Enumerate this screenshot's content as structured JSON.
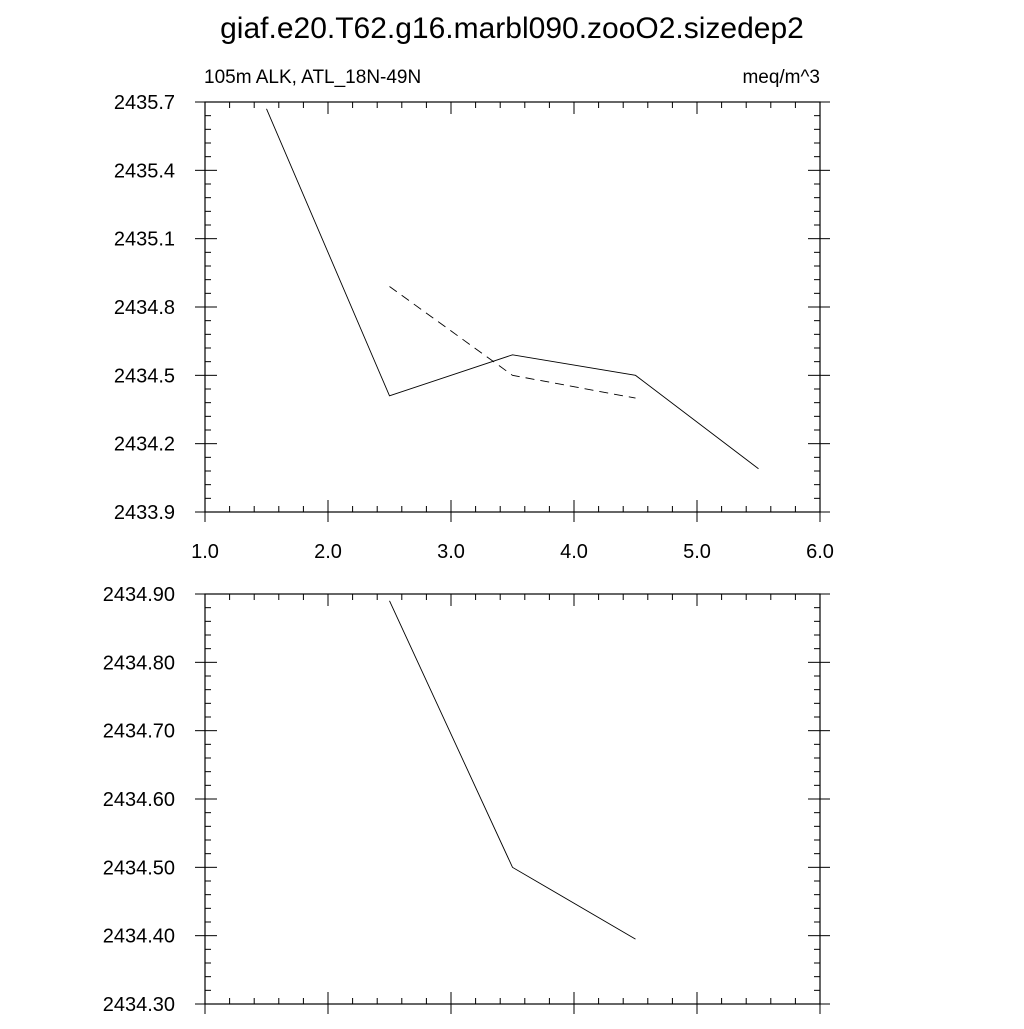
{
  "page_title": "giaf.e20.T62.g16.marbl090.zooO2.sizedep2",
  "chart_data": [
    {
      "type": "line",
      "title": "giaf.e20.T62.g16.marbl090.zooO2.sizedep2",
      "left_label": "105m ALK, ATL_18N-49N",
      "right_label": "meq/m^3",
      "xlim": [
        1.0,
        6.0
      ],
      "ylim": [
        2433.9,
        2435.7
      ],
      "x_ticks": [
        1.0,
        2.0,
        3.0,
        4.0,
        5.0,
        6.0
      ],
      "x_tick_labels": [
        "1.0",
        "2.0",
        "3.0",
        "4.0",
        "5.0",
        "6.0"
      ],
      "y_ticks": [
        2433.9,
        2434.2,
        2434.5,
        2434.8,
        2435.1,
        2435.4,
        2435.7
      ],
      "y_tick_labels": [
        "2433.9",
        "2434.2",
        "2434.5",
        "2434.8",
        "2435.1",
        "2435.4",
        "2435.7"
      ],
      "grid": false,
      "series": [
        {
          "style": "solid",
          "x": [
            1.5,
            2.5,
            3.5,
            4.5,
            5.5
          ],
          "y": [
            2435.67,
            2434.41,
            2434.59,
            2434.5,
            2434.09
          ]
        },
        {
          "style": "dashed",
          "x": [
            2.5,
            3.5,
            4.5
          ],
          "y": [
            2434.89,
            2434.5,
            2434.4
          ]
        }
      ]
    },
    {
      "type": "line",
      "xlim": [
        1.0,
        6.0
      ],
      "ylim": [
        2434.3,
        2434.9
      ],
      "x_ticks": [
        1.0,
        2.0,
        3.0,
        4.0,
        5.0,
        6.0
      ],
      "y_ticks": [
        2434.3,
        2434.4,
        2434.5,
        2434.6,
        2434.7,
        2434.8,
        2434.9
      ],
      "y_tick_labels": [
        "2434.30",
        "2434.40",
        "2434.50",
        "2434.60",
        "2434.70",
        "2434.80",
        "2434.90"
      ],
      "grid": false,
      "series": [
        {
          "style": "solid",
          "x": [
            2.5,
            3.5,
            4.5
          ],
          "y": [
            2434.89,
            2434.5,
            2434.395
          ]
        }
      ]
    }
  ]
}
